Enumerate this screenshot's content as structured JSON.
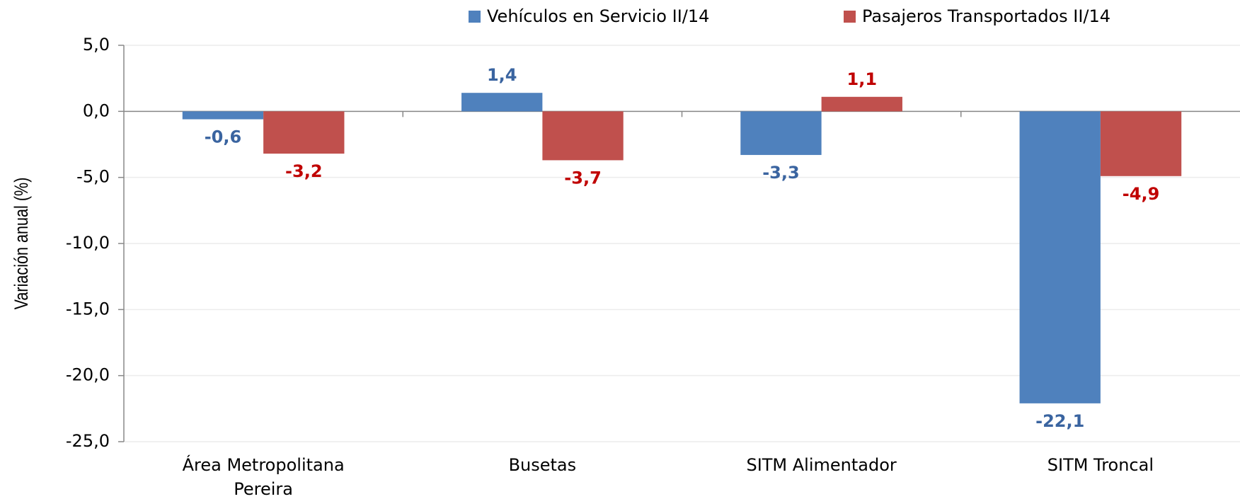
{
  "chart_data": {
    "type": "bar",
    "y_label": "Variación anual (%)",
    "categories": [
      "Área Metropolitana Pereira",
      "Busetas",
      "SITM Alimentador",
      "SITM Troncal"
    ],
    "series": [
      {
        "name": "Vehículos en Servicio II/14",
        "color": "#4f81bd",
        "label_color": "#3a64a0",
        "values": [
          -0.6,
          1.4,
          -3.3,
          -22.1
        ],
        "value_labels": [
          "-0,6",
          "1,4",
          "-3,3",
          "-22,1"
        ]
      },
      {
        "name": "Pasajeros Transportados II/14",
        "color": "#c0504d",
        "label_color": "#c00000",
        "values": [
          -3.2,
          -3.7,
          1.1,
          -4.9
        ],
        "value_labels": [
          "-3,2",
          "-3,7",
          "1,1",
          "-4,9"
        ]
      }
    ],
    "ylim": [
      -25,
      5
    ],
    "yticks": [
      {
        "value": -25,
        "label": "-25,0"
      },
      {
        "value": -20,
        "label": "-20,0"
      },
      {
        "value": -15,
        "label": "-15,0"
      },
      {
        "value": -10,
        "label": "-10,0"
      },
      {
        "value": -5,
        "label": "-5,0"
      },
      {
        "value": 0,
        "label": "0,0"
      },
      {
        "value": 5,
        "label": "5,0"
      }
    ],
    "grid": true
  }
}
